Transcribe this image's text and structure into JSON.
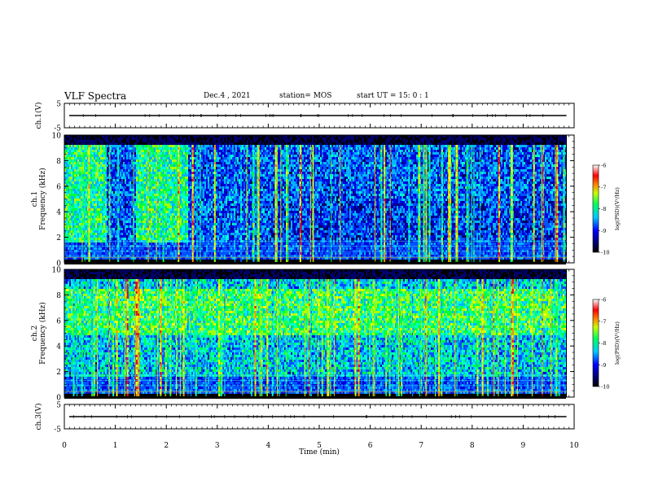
{
  "header": {
    "title": "VLF Spectra",
    "date": "Dec.4 , 2021",
    "station": "station= MOS",
    "start_ut": "start  UT =  15: 0  : 1"
  },
  "chart_data": [
    {
      "type": "line",
      "ylabel": "ch.1(V)",
      "ylim": [
        -5,
        5
      ],
      "yticks": [
        "5",
        "-5"
      ],
      "xlim": [
        0,
        10
      ],
      "series_value": 0
    },
    {
      "type": "heatmap",
      "ylabel": "ch.1\nFrequency (kHz)",
      "ylim": [
        0,
        10
      ],
      "yticks": [
        "0",
        "2",
        "4",
        "6",
        "8",
        "10"
      ],
      "xlim": [
        0,
        10
      ],
      "colorbar": {
        "label": "log(PSD)(V²/Hz)",
        "range": [
          -10,
          -6
        ],
        "ticks": [
          "-6",
          "-7",
          "-8",
          "-9",
          "-10"
        ]
      }
    },
    {
      "type": "heatmap",
      "ylabel": "ch.2\nFrequency (kHz)",
      "ylim": [
        0,
        10
      ],
      "yticks": [
        "0",
        "2",
        "4",
        "6",
        "8",
        "10"
      ],
      "xlim": [
        0,
        10
      ],
      "colorbar": {
        "label": "log(PSD)(V²/Hz)",
        "range": [
          -10,
          -6
        ],
        "ticks": [
          "-6",
          "-7",
          "-8",
          "-9",
          "-10"
        ]
      }
    },
    {
      "type": "line",
      "ylabel": "ch.3(V)",
      "ylim": [
        -5,
        5
      ],
      "yticks": [
        "5",
        "-5"
      ],
      "xlim": [
        0,
        10
      ],
      "series_value": 0
    }
  ],
  "xaxis": {
    "label": "Time (min)",
    "ticks": [
      "0",
      "1",
      "2",
      "3",
      "4",
      "5",
      "6",
      "7",
      "8",
      "9",
      "10"
    ]
  }
}
